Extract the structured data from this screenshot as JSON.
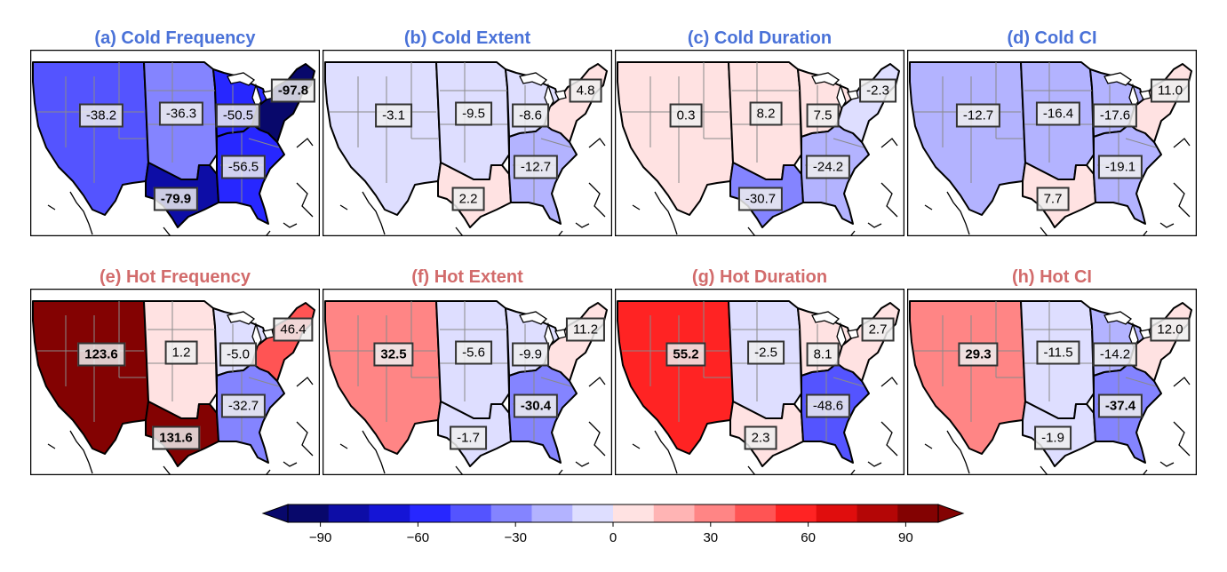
{
  "colors": {
    "title_cold": "#4a72d8",
    "title_hot": "#d26b6b",
    "scale": [
      "#08086b",
      "#0d0da6",
      "#1515d6",
      "#2727ff",
      "#5454ff",
      "#8484ff",
      "#b3b3ff",
      "#dedeff",
      "#ffe2e2",
      "#ffb4b4",
      "#ff8585",
      "#ff5454",
      "#ff2323",
      "#e00d0d",
      "#b40606",
      "#830202"
    ]
  },
  "colorbar": {
    "ticks": [
      "−90",
      "−60",
      "−30",
      "0",
      "30",
      "60",
      "90"
    ],
    "tick_values": [
      -90,
      -60,
      -30,
      0,
      30,
      60,
      90
    ],
    "range": [
      -100,
      100
    ]
  },
  "panels": [
    {
      "title": "(a) Cold Frequency",
      "group": "cold",
      "regions": {
        "west": -38.2,
        "plains": -36.3,
        "south": -79.9,
        "midwest": -50.5,
        "southeast": -56.5,
        "northeast": -97.8
      },
      "labels": {
        "west": "-38.2",
        "plains": "-36.3",
        "south": "-79.9",
        "midwest": "-50.5",
        "southeast": "-56.5",
        "northeast": "-97.8"
      },
      "bold": [
        "south",
        "northeast"
      ]
    },
    {
      "title": "(b) Cold Extent",
      "group": "cold",
      "regions": {
        "west": -3.1,
        "plains": -9.5,
        "south": 2.2,
        "midwest": -8.6,
        "southeast": -12.7,
        "northeast": 4.8
      },
      "labels": {
        "west": "-3.1",
        "plains": "-9.5",
        "south": "2.2",
        "midwest": "-8.6",
        "southeast": "-12.7",
        "northeast": "4.8"
      },
      "bold": []
    },
    {
      "title": "(c) Cold Duration",
      "group": "cold",
      "regions": {
        "west": 0.3,
        "plains": 8.2,
        "south": -30.7,
        "midwest": 7.5,
        "southeast": -24.2,
        "northeast": -2.3
      },
      "labels": {
        "west": "0.3",
        "plains": "8.2",
        "south": "-30.7",
        "midwest": "7.5",
        "southeast": "-24.2",
        "northeast": "-2.3"
      },
      "bold": []
    },
    {
      "title": "(d) Cold CI",
      "group": "cold",
      "regions": {
        "west": -12.7,
        "plains": -16.4,
        "south": 7.7,
        "midwest": -17.6,
        "southeast": -19.1,
        "northeast": 11.0
      },
      "labels": {
        "west": "-12.7",
        "plains": "-16.4",
        "south": "7.7",
        "midwest": "-17.6",
        "southeast": "-19.1",
        "northeast": "11.0"
      },
      "bold": []
    },
    {
      "title": "(e) Hot Frequency",
      "group": "hot",
      "regions": {
        "west": 123.6,
        "plains": 1.2,
        "south": 131.6,
        "midwest": -5.0,
        "southeast": -32.7,
        "northeast": 46.4
      },
      "labels": {
        "west": "123.6",
        "plains": "1.2",
        "south": "131.6",
        "midwest": "-5.0",
        "southeast": "-32.7",
        "northeast": "46.4"
      },
      "bold": [
        "west",
        "south"
      ]
    },
    {
      "title": "(f) Hot Extent",
      "group": "hot",
      "regions": {
        "west": 32.5,
        "plains": -5.6,
        "south": -1.7,
        "midwest": -9.9,
        "southeast": -30.4,
        "northeast": 11.2
      },
      "labels": {
        "west": "32.5",
        "plains": "-5.6",
        "south": "-1.7",
        "midwest": "-9.9",
        "southeast": "-30.4",
        "northeast": "11.2"
      },
      "bold": [
        "west",
        "southeast"
      ]
    },
    {
      "title": "(g) Hot Duration",
      "group": "hot",
      "regions": {
        "west": 55.2,
        "plains": -2.5,
        "south": 2.3,
        "midwest": 8.1,
        "southeast": -48.6,
        "northeast": 2.7
      },
      "labels": {
        "west": "55.2",
        "plains": "-2.5",
        "south": "2.3",
        "midwest": "8.1",
        "southeast": "-48.6",
        "northeast": "2.7"
      },
      "bold": [
        "west"
      ]
    },
    {
      "title": "(h) Hot CI",
      "group": "hot",
      "regions": {
        "west": 29.3,
        "plains": -11.5,
        "south": -1.9,
        "midwest": -14.2,
        "southeast": -37.4,
        "northeast": 12.0
      },
      "labels": {
        "west": "29.3",
        "plains": "-11.5",
        "south": "-1.9",
        "midwest": "-14.2",
        "southeast": "-37.4",
        "northeast": "12.0"
      },
      "bold": [
        "west",
        "southeast"
      ]
    }
  ]
}
